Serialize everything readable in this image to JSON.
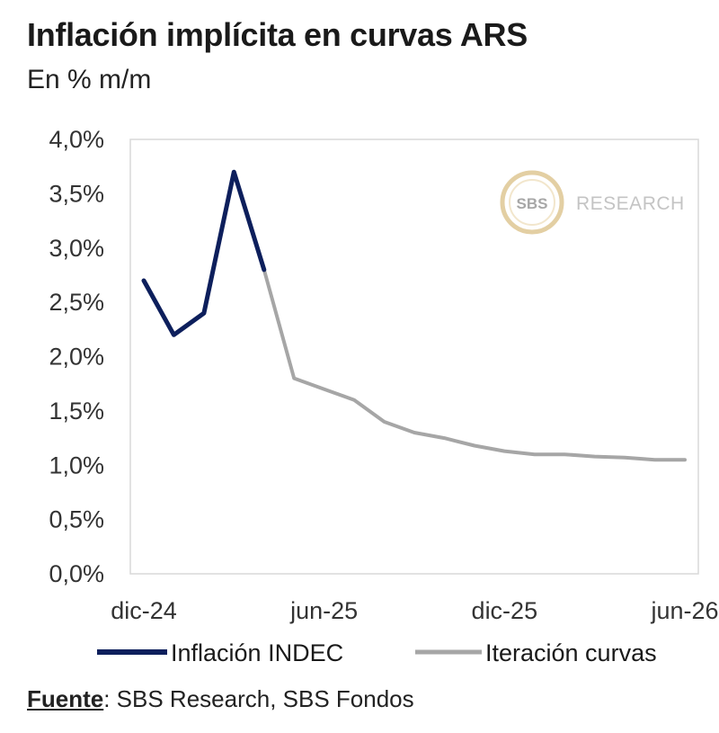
{
  "title": "Inflación implícita en curvas ARS",
  "subtitle": "En % m/m",
  "watermark": {
    "badge": "SBS",
    "text": "RESEARCH"
  },
  "source": {
    "label": "Fuente",
    "text": ": SBS Research, SBS Fondos"
  },
  "chart_data": {
    "type": "line",
    "ylim": [
      0,
      4.0
    ],
    "y_ticks": [
      "0,0%",
      "0,5%",
      "1,0%",
      "1,5%",
      "2,0%",
      "2,5%",
      "3,0%",
      "3,5%",
      "4,0%"
    ],
    "x_ticks": [
      "dic-24",
      "jun-25",
      "dic-25",
      "jun-26"
    ],
    "grid": false,
    "legend_position": "bottom",
    "series": [
      {
        "name": "Inflación INDEC",
        "color": "#0d1f5c",
        "x": [
          "2024-12",
          "2025-01",
          "2025-02",
          "2025-03",
          "2025-04"
        ],
        "values": [
          2.7,
          2.2,
          2.4,
          3.7,
          2.8
        ]
      },
      {
        "name": "Iteración curvas",
        "color": "#a6a6a6",
        "x": [
          "2025-04",
          "2025-05",
          "2025-06",
          "2025-07",
          "2025-08",
          "2025-09",
          "2025-10",
          "2025-11",
          "2025-12",
          "2026-01",
          "2026-02",
          "2026-03",
          "2026-04",
          "2026-05",
          "2026-06"
        ],
        "values": [
          2.8,
          1.8,
          1.7,
          1.6,
          1.4,
          1.3,
          1.25,
          1.18,
          1.13,
          1.1,
          1.1,
          1.08,
          1.07,
          1.05,
          1.05
        ]
      }
    ]
  }
}
